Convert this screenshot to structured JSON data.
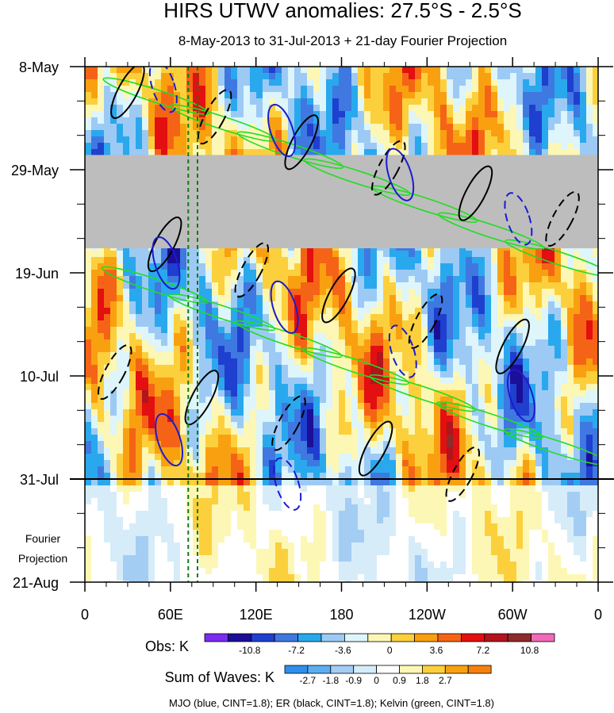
{
  "chart_data": {
    "type": "heatmap",
    "title": "HIRS UTWV anomalies: 27.5°S - 2.5°S",
    "subtitle": "8-May-2013 to 31-Jul-2013 + 21-day Fourier Projection",
    "x_tick_labels": [
      "0",
      "60E",
      "120E",
      "180",
      "120W",
      "60W",
      "0"
    ],
    "x_ticks_lon": [
      0,
      60,
      120,
      180,
      240,
      300,
      360
    ],
    "y_tick_labels": [
      "8-May",
      "29-May",
      "19-Jun",
      "10-Jul",
      "31-Jul",
      "21-Aug"
    ],
    "y_ticks_day": [
      0,
      21,
      42,
      63,
      84,
      105
    ],
    "projection_label": [
      "Fourier",
      "Projection"
    ],
    "missing_band_days": [
      18,
      37
    ],
    "projection_start_day": 84,
    "marker_lons": [
      72.5,
      79
    ],
    "obs_colorbar": {
      "title": "Obs: K",
      "colors": [
        "#7b2cf0",
        "#1a0f96",
        "#1f3fcf",
        "#3f78e0",
        "#2aa8ee",
        "#9ccaf5",
        "#ddf5fb",
        "#fdf7b5",
        "#fcd03c",
        "#f9a011",
        "#f56416",
        "#e30f10",
        "#b3131c",
        "#8e2b2b",
        "#f06ab9"
      ],
      "tick_labels": [
        "-10.8",
        "-7.2",
        "-3.6",
        "0",
        "3.6",
        "7.2",
        "10.8"
      ]
    },
    "waves_colorbar": {
      "title": "Sum of Waves: K",
      "colors": [
        "#2e8fee",
        "#5caef2",
        "#a4cdf4",
        "#d6ecf9",
        "#ffffff",
        "#fdf7b5",
        "#fcd03c",
        "#f9a011",
        "#f5800f"
      ],
      "tick_labels": [
        "-2.7",
        "-1.8",
        "-0.9",
        "0",
        "0.9",
        "1.8",
        "2.7"
      ]
    },
    "contour_legend": "MJO (blue, CINT=1.8); ER (black, CINT=1.8); Kelvin (green, CINT=1.8)",
    "series": [
      {
        "name": "MJO",
        "color": "#1b1bd0"
      },
      {
        "name": "ER",
        "color": "#000000"
      },
      {
        "name": "Kelvin",
        "color": "#22dd22"
      }
    ]
  }
}
